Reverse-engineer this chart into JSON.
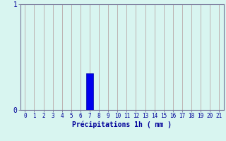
{
  "title": "",
  "xlabel": "Précipitations 1h ( mm )",
  "ylabel": "",
  "xlim": [
    -0.5,
    21.5
  ],
  "ylim": [
    0,
    1.0
  ],
  "yticks": [
    0,
    1
  ],
  "xticks": [
    0,
    1,
    2,
    3,
    4,
    5,
    6,
    7,
    8,
    9,
    10,
    11,
    12,
    13,
    14,
    15,
    16,
    17,
    18,
    19,
    20,
    21
  ],
  "bar_x": 7,
  "bar_height": 0.35,
  "bar_color": "#0000ee",
  "bar_edge_color": "#0000aa",
  "background_color": "#d8f5f0",
  "grid_color": "#b8a8a8",
  "axis_color": "#777799",
  "text_color": "#000099",
  "bar_width": 0.7,
  "xlabel_fontsize": 7,
  "tick_fontsize": 5.5,
  "ytick_fontsize": 7
}
